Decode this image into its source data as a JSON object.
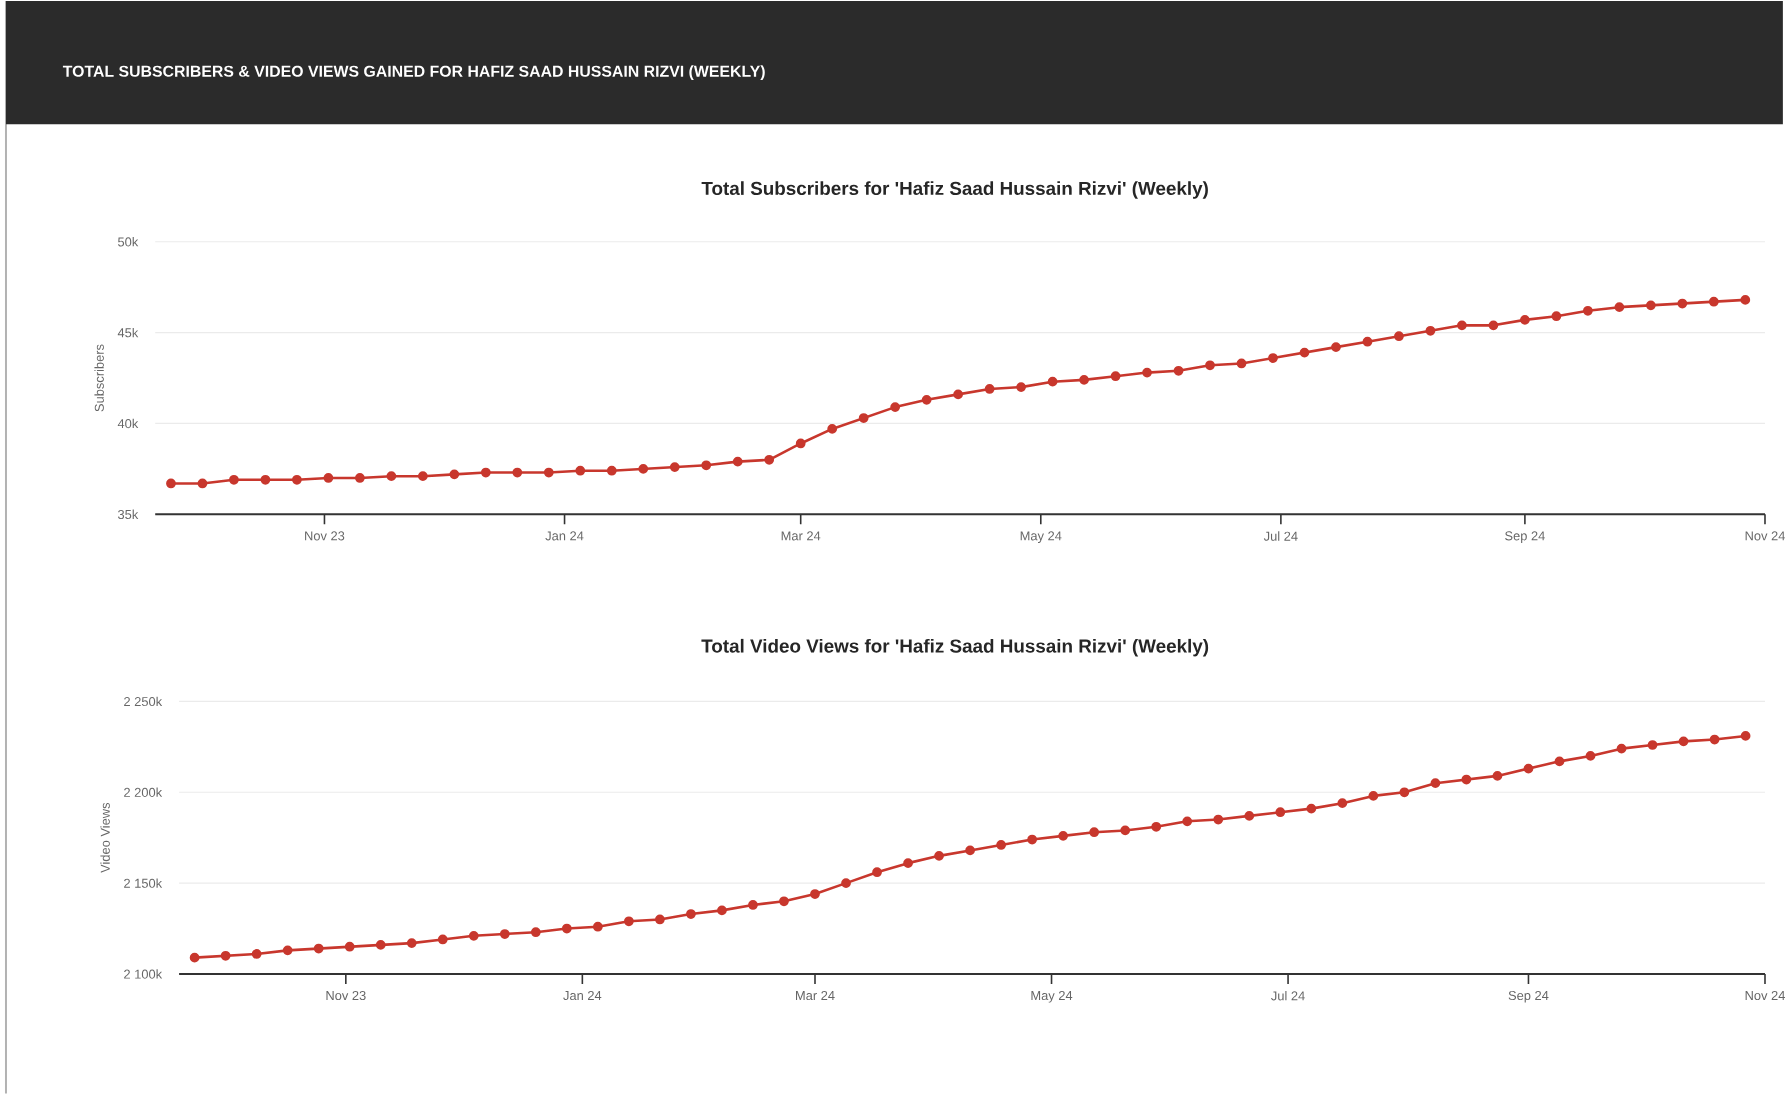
{
  "chart_data": [
    {
      "type": "line",
      "title": "TOTAL SUBSCRIBERS & VIDEO VIEWS GAINED FOR HAFIZ SAAD HUSSAIN RIZVI (WEEKLY)",
      "subtitle": "Total Subscribers for 'Hafiz Saad Hussain Rizvi' (Weekly)",
      "ylabel": "Subscribers",
      "x": [
        "2023-09-23",
        "2023-10-01",
        "2023-10-09",
        "2023-10-17",
        "2023-10-25",
        "2023-11-02",
        "2023-11-10",
        "2023-11-18",
        "2023-11-26",
        "2023-12-04",
        "2023-12-12",
        "2023-12-20",
        "2023-12-28",
        "2024-01-05",
        "2024-01-13",
        "2024-01-21",
        "2024-01-29",
        "2024-02-06",
        "2024-02-14",
        "2024-02-22",
        "2024-03-01",
        "2024-03-09",
        "2024-03-17",
        "2024-03-25",
        "2024-04-02",
        "2024-04-10",
        "2024-04-18",
        "2024-04-26",
        "2024-05-04",
        "2024-05-12",
        "2024-05-20",
        "2024-05-28",
        "2024-06-05",
        "2024-06-13",
        "2024-06-21",
        "2024-06-29",
        "2024-07-07",
        "2024-07-15",
        "2024-07-23",
        "2024-07-31",
        "2024-08-08",
        "2024-08-16",
        "2024-08-24",
        "2024-09-01",
        "2024-09-09",
        "2024-09-17",
        "2024-09-25",
        "2024-10-03",
        "2024-10-11",
        "2024-10-19",
        "2024-10-27"
      ],
      "values": [
        36700,
        36700,
        36900,
        36900,
        36900,
        37000,
        37000,
        37100,
        37100,
        37200,
        37300,
        37300,
        37300,
        37400,
        37400,
        37500,
        37600,
        37700,
        37900,
        38000,
        38900,
        39700,
        40300,
        40900,
        41300,
        41600,
        41900,
        42000,
        42300,
        42400,
        42600,
        42800,
        42900,
        43200,
        43300,
        43600,
        43900,
        44200,
        44500,
        44800,
        45100,
        45400,
        45400,
        45700,
        45900,
        46200,
        46400,
        46500,
        46600,
        46700,
        46800
      ],
      "color": "#c8372d",
      "marker": "circle",
      "grid": "y",
      "xlim": [
        "2023-09-19",
        "2024-11-01"
      ],
      "xticks": [
        {
          "value": "2023-11-01",
          "label": "Nov 23"
        },
        {
          "value": "2024-01-01",
          "label": "Jan 24"
        },
        {
          "value": "2024-03-01",
          "label": "Mar 24"
        },
        {
          "value": "2024-05-01",
          "label": "May 24"
        },
        {
          "value": "2024-07-01",
          "label": "Jul 24"
        },
        {
          "value": "2024-09-01",
          "label": "Sep 24"
        },
        {
          "value": "2024-11-01",
          "label": "Nov 24"
        }
      ],
      "ylim": [
        35000,
        50000
      ],
      "yticks": [
        {
          "value": 35000,
          "label": "35k"
        },
        {
          "value": 40000,
          "label": "40k"
        },
        {
          "value": 45000,
          "label": "45k"
        },
        {
          "value": 50000,
          "label": "50k"
        }
      ]
    },
    {
      "type": "line",
      "title": "Total Video Views for 'Hafiz Saad Hussain Rizvi' (Weekly)",
      "ylabel": "Video Views",
      "x": [
        "2023-09-23",
        "2023-10-01",
        "2023-10-09",
        "2023-10-17",
        "2023-10-25",
        "2023-11-02",
        "2023-11-10",
        "2023-11-18",
        "2023-11-26",
        "2023-12-04",
        "2023-12-12",
        "2023-12-20",
        "2023-12-28",
        "2024-01-05",
        "2024-01-13",
        "2024-01-21",
        "2024-01-29",
        "2024-02-06",
        "2024-02-14",
        "2024-02-22",
        "2024-03-01",
        "2024-03-09",
        "2024-03-17",
        "2024-03-25",
        "2024-04-02",
        "2024-04-10",
        "2024-04-18",
        "2024-04-26",
        "2024-05-04",
        "2024-05-12",
        "2024-05-20",
        "2024-05-28",
        "2024-06-05",
        "2024-06-13",
        "2024-06-21",
        "2024-06-29",
        "2024-07-07",
        "2024-07-15",
        "2024-07-23",
        "2024-07-31",
        "2024-08-08",
        "2024-08-16",
        "2024-08-24",
        "2024-09-01",
        "2024-09-09",
        "2024-09-17",
        "2024-09-25",
        "2024-10-03",
        "2024-10-11",
        "2024-10-19",
        "2024-10-27"
      ],
      "values": [
        2109000,
        2110000,
        2111000,
        2113000,
        2114000,
        2115000,
        2116000,
        2117000,
        2119000,
        2121000,
        2122000,
        2123000,
        2125000,
        2126000,
        2129000,
        2130000,
        2133000,
        2135000,
        2138000,
        2140000,
        2144000,
        2150000,
        2156000,
        2161000,
        2165000,
        2168000,
        2171000,
        2174000,
        2176000,
        2178000,
        2179000,
        2181000,
        2184000,
        2185000,
        2187000,
        2189000,
        2191000,
        2194000,
        2198000,
        2200000,
        2205000,
        2207000,
        2209000,
        2213000,
        2217000,
        2220000,
        2224000,
        2226000,
        2228000,
        2229000,
        2231000
      ],
      "color": "#c8372d",
      "marker": "circle",
      "grid": "y",
      "xlim": [
        "2023-09-19",
        "2024-11-01"
      ],
      "xticks": [
        {
          "value": "2023-11-01",
          "label": "Nov 23"
        },
        {
          "value": "2024-01-01",
          "label": "Jan 24"
        },
        {
          "value": "2024-03-01",
          "label": "Mar 24"
        },
        {
          "value": "2024-05-01",
          "label": "May 24"
        },
        {
          "value": "2024-07-01",
          "label": "Jul 24"
        },
        {
          "value": "2024-09-01",
          "label": "Sep 24"
        },
        {
          "value": "2024-11-01",
          "label": "Nov 24"
        }
      ],
      "ylim": [
        2100000,
        2250000
      ],
      "yticks": [
        {
          "value": 2100000,
          "label": "2 100k"
        },
        {
          "value": 2150000,
          "label": "2 150k"
        },
        {
          "value": 2200000,
          "label": "2 200k"
        },
        {
          "value": 2250000,
          "label": "2 250k"
        }
      ]
    }
  ]
}
